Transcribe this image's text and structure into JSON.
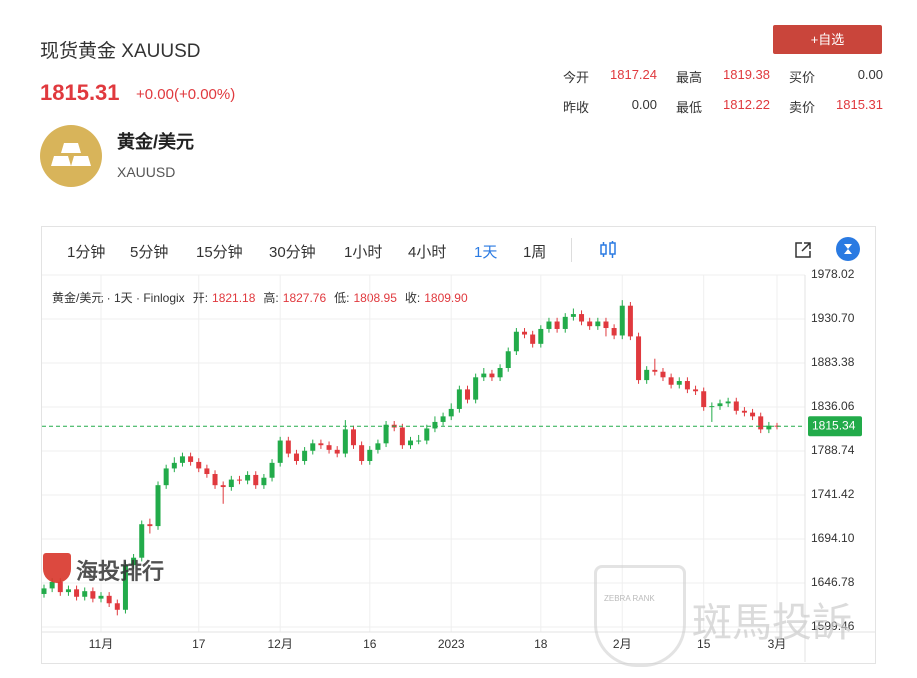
{
  "header": {
    "title": "现货黄金 XAUUSD",
    "price": "1815.31",
    "change": "+0.00(+0.00%)",
    "button": "+自选",
    "stats": [
      {
        "label": "今开",
        "value": "1817.24"
      },
      {
        "label": "最高",
        "value": "1819.38"
      },
      {
        "label": "买价",
        "value": "0.00"
      },
      {
        "label": "昨收",
        "value": "0.00"
      },
      {
        "label": "最低",
        "value": "1812.22"
      },
      {
        "label": "卖价",
        "value": "1815.31"
      }
    ],
    "name": "黄金/美元",
    "code": "XAUUSD"
  },
  "toolbar": {
    "intervals": [
      "1分钟",
      "5分钟",
      "15分钟",
      "30分钟",
      "1小时",
      "4小时",
      "1天",
      "1周"
    ],
    "active": "1天"
  },
  "legend": {
    "source": "黄金/美元 · 1天 · Finlogix",
    "items": [
      {
        "label": "开:",
        "value": "1821.18"
      },
      {
        "label": "高:",
        "value": "1827.76"
      },
      {
        "label": "低:",
        "value": "1808.95"
      },
      {
        "label": "收:",
        "value": "1809.90"
      }
    ]
  },
  "watermarks": {
    "left": "海投排行",
    "right": "斑馬投訴",
    "badge": "ZEBRA RANK"
  },
  "chart_data": {
    "type": "candlestick",
    "categories": [
      null,
      null,
      null,
      null,
      null,
      null,
      null,
      "11月",
      null,
      null,
      null,
      null,
      null,
      null,
      null,
      null,
      null,
      null,
      null,
      "17",
      null,
      null,
      null,
      null,
      null,
      null,
      null,
      null,
      null,
      "12月",
      null,
      null,
      null,
      null,
      null,
      null,
      null,
      null,
      null,
      null,
      "16",
      null,
      null,
      null,
      null,
      null,
      null,
      null,
      null,
      null,
      "2023",
      null,
      null,
      null,
      null,
      null,
      null,
      null,
      null,
      null,
      null,
      "18",
      null,
      null,
      null,
      null,
      null,
      null,
      null,
      null,
      null,
      "2月",
      null,
      null,
      null,
      null,
      null,
      null,
      null,
      null,
      null,
      "15",
      null,
      null,
      null,
      null,
      null,
      null,
      null,
      null,
      "3月"
    ],
    "series": [
      {
        "name": "黄金/美元",
        "up_color": "#22ab4a",
        "down_color": "#e0393e",
        "open": [
          1635,
          1641,
          1648,
          1637,
          1640,
          1632,
          1638,
          1630,
          1633,
          1625,
          1618,
          1666,
          1674,
          1710,
          1708,
          1752,
          1770,
          1776,
          1783,
          1777,
          1770,
          1764,
          1752,
          1750,
          1758,
          1757,
          1763,
          1752,
          1760,
          1776,
          1800,
          1786,
          1778,
          1789,
          1797,
          1795,
          1790,
          1786,
          1812,
          1795,
          1778,
          1790,
          1797,
          1817,
          1814,
          1795,
          1800,
          1800,
          1813,
          1820,
          1826,
          1834,
          1855,
          1844,
          1868,
          1872,
          1868,
          1878,
          1896,
          1917,
          1914,
          1904,
          1920,
          1928,
          1920,
          1933,
          1936,
          1928,
          1923,
          1928,
          1921,
          1913,
          1945,
          1912,
          1865,
          1876,
          1874,
          1868,
          1860,
          1864,
          1855,
          1853,
          1836,
          1837,
          1840,
          1842,
          1832,
          1830,
          1826,
          1812,
          1816
        ],
        "high": [
          1645,
          1652,
          1652,
          1644,
          1644,
          1642,
          1642,
          1637,
          1637,
          1629,
          1670,
          1678,
          1714,
          1716,
          1756,
          1774,
          1782,
          1787,
          1787,
          1781,
          1774,
          1768,
          1756,
          1762,
          1762,
          1767,
          1767,
          1764,
          1780,
          1804,
          1804,
          1790,
          1793,
          1801,
          1801,
          1799,
          1794,
          1822,
          1816,
          1799,
          1794,
          1801,
          1821,
          1821,
          1818,
          1804,
          1806,
          1817,
          1826,
          1830,
          1840,
          1859,
          1859,
          1872,
          1878,
          1876,
          1882,
          1900,
          1921,
          1921,
          1918,
          1924,
          1932,
          1932,
          1937,
          1942,
          1940,
          1932,
          1932,
          1932,
          1925,
          1951,
          1949,
          1916,
          1880,
          1888,
          1878,
          1872,
          1868,
          1868,
          1859,
          1857,
          1841,
          1844,
          1846,
          1846,
          1836,
          1834,
          1830,
          1820,
          1819
        ],
        "low": [
          1631,
          1637,
          1633,
          1633,
          1628,
          1628,
          1626,
          1626,
          1621,
          1612,
          1614,
          1662,
          1670,
          1700,
          1704,
          1748,
          1766,
          1772,
          1773,
          1766,
          1760,
          1748,
          1732,
          1746,
          1753,
          1753,
          1748,
          1748,
          1756,
          1772,
          1782,
          1774,
          1774,
          1785,
          1791,
          1786,
          1782,
          1782,
          1791,
          1774,
          1774,
          1786,
          1793,
          1810,
          1791,
          1791,
          1796,
          1796,
          1809,
          1816,
          1822,
          1830,
          1840,
          1840,
          1864,
          1864,
          1864,
          1874,
          1892,
          1910,
          1900,
          1900,
          1916,
          1916,
          1916,
          1929,
          1924,
          1919,
          1919,
          1912,
          1909,
          1909,
          1908,
          1861,
          1861,
          1870,
          1864,
          1856,
          1856,
          1851,
          1849,
          1832,
          1820,
          1833,
          1836,
          1828,
          1826,
          1822,
          1808,
          1808,
          1812
        ],
        "close": [
          1641,
          1648,
          1637,
          1640,
          1632,
          1638,
          1630,
          1633,
          1625,
          1618,
          1666,
          1674,
          1710,
          1708,
          1752,
          1770,
          1776,
          1783,
          1777,
          1770,
          1764,
          1752,
          1750,
          1758,
          1757,
          1763,
          1752,
          1760,
          1776,
          1800,
          1786,
          1778,
          1789,
          1797,
          1795,
          1790,
          1786,
          1812,
          1795,
          1778,
          1790,
          1797,
          1817,
          1814,
          1795,
          1800,
          1800,
          1813,
          1820,
          1826,
          1834,
          1855,
          1844,
          1868,
          1872,
          1868,
          1878,
          1896,
          1917,
          1914,
          1904,
          1920,
          1928,
          1920,
          1933,
          1936,
          1928,
          1923,
          1928,
          1921,
          1913,
          1945,
          1912,
          1865,
          1876,
          1874,
          1868,
          1860,
          1864,
          1855,
          1853,
          1836,
          1837,
          1840,
          1842,
          1832,
          1830,
          1826,
          1812,
          1816,
          1815
        ]
      }
    ],
    "ylim": [
      1594.1,
      1978.02
    ],
    "yticks": [
      1978.02,
      {
        "value": 1930.7,
        "label": "1930.70"
      },
      1883.38,
      1836.06,
      1788.74,
      1741.42,
      {
        "value": 1694.1,
        "label": "1694.10"
      },
      1646.78,
      1599.46
    ],
    "current_price": 1815.34,
    "grid": true
  }
}
